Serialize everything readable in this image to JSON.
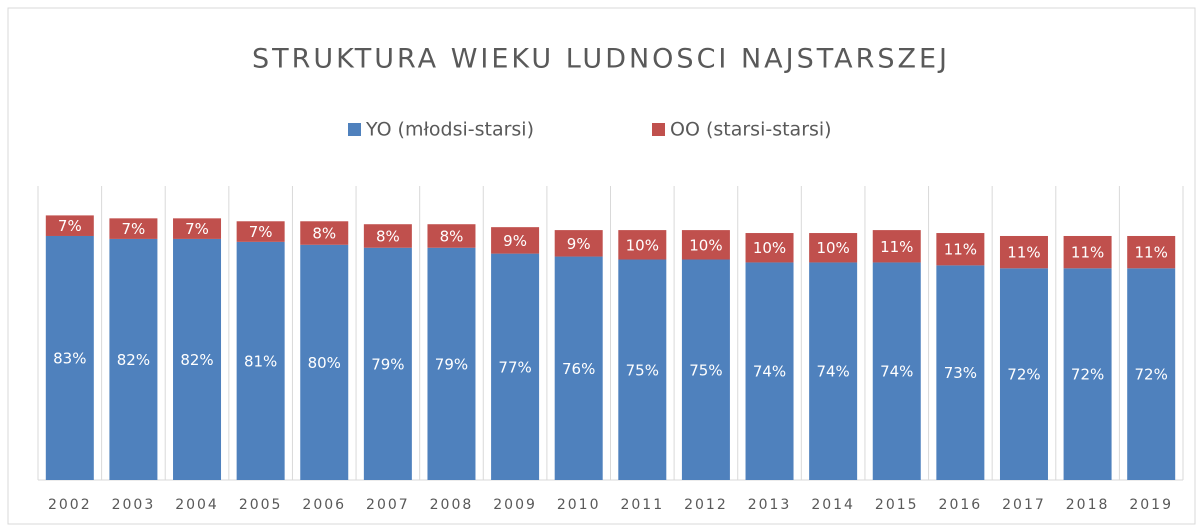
{
  "chart_data": {
    "type": "stacked_bar",
    "title": "STRUKTURA WIEKU LUDNOSCI NAJSTARSZEJ",
    "categories": [
      "2002",
      "2003",
      "2004",
      "2005",
      "2006",
      "2007",
      "2008",
      "2009",
      "2010",
      "2011",
      "2012",
      "2013",
      "2014",
      "2015",
      "2016",
      "2017",
      "2018",
      "2019"
    ],
    "series": [
      {
        "name": "YO (młodsi-starsi)",
        "color": "#4f81bd",
        "values": [
          83,
          82,
          82,
          81,
          80,
          79,
          79,
          77,
          76,
          75,
          75,
          74,
          74,
          74,
          73,
          72,
          72,
          72
        ],
        "value_labels": [
          "83%",
          "82%",
          "82%",
          "81%",
          "80%",
          "79%",
          "79%",
          "77%",
          "76%",
          "75%",
          "75%",
          "74%",
          "74%",
          "74%",
          "73%",
          "72%",
          "72%",
          "72%"
        ]
      },
      {
        "name": "OO (starsi-starsi)",
        "color": "#c0504d",
        "values": [
          7,
          7,
          7,
          7,
          8,
          8,
          8,
          9,
          9,
          10,
          10,
          10,
          10,
          11,
          11,
          11,
          11,
          11
        ],
        "value_labels": [
          "7%",
          "7%",
          "7%",
          "7%",
          "8%",
          "8%",
          "8%",
          "9%",
          "9%",
          "10%",
          "10%",
          "10%",
          "10%",
          "11%",
          "11%",
          "11%",
          "11%",
          "11%"
        ]
      }
    ],
    "ylim": [
      0,
      100
    ],
    "legend": "top"
  }
}
